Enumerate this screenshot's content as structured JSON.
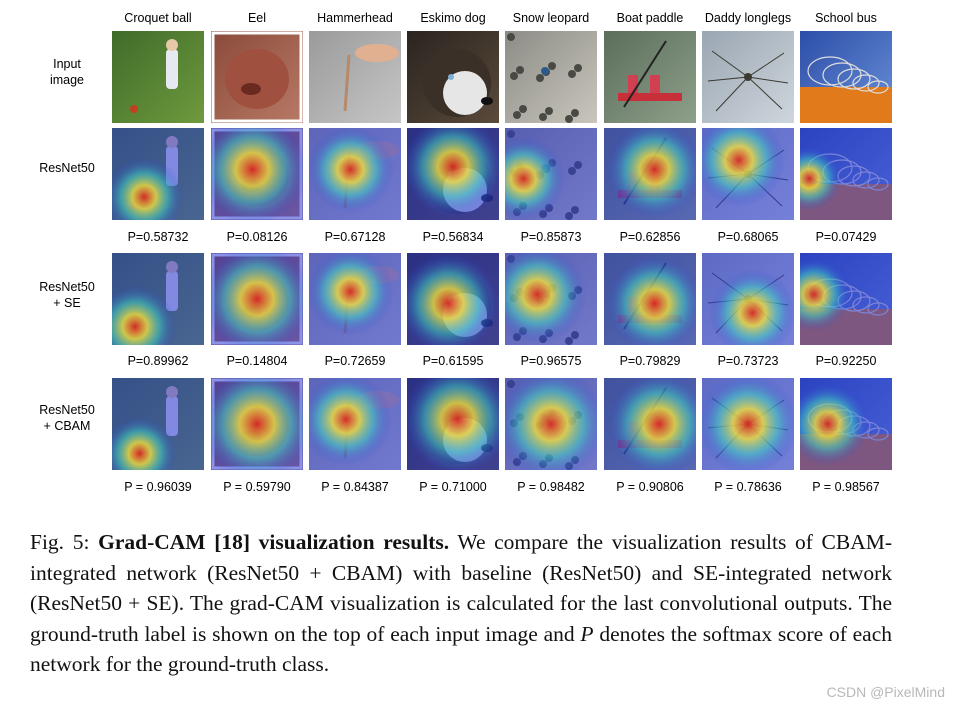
{
  "columns": [
    "Croquet ball",
    "Eel",
    "Hammerhead",
    "Eskimo dog",
    "Snow leopard",
    "Boat paddle",
    "Daddy longlegs",
    "School bus"
  ],
  "rows": [
    {
      "label_lines": [
        "Input",
        "image"
      ],
      "kind": "input",
      "p_values": []
    },
    {
      "label_lines": [
        "ResNet50"
      ],
      "kind": "cam",
      "p_values": [
        "P=0.58732",
        "P=0.08126",
        "P=0.67128",
        "P=0.56834",
        "P=0.85873",
        "P=0.62856",
        "P=0.68065",
        "P=0.07429"
      ]
    },
    {
      "label_lines": [
        "ResNet50",
        "+ SE"
      ],
      "kind": "cam",
      "p_values": [
        "P=0.89962",
        "P=0.14804",
        "P=0.72659",
        "P=0.61595",
        "P=0.96575",
        "P=0.79829",
        "P=0.73723",
        "P=0.92250"
      ]
    },
    {
      "label_lines": [
        "ResNet50",
        "+ CBAM"
      ],
      "kind": "cam",
      "p_values": [
        "P = 0.96039",
        "P = 0.59790",
        "P = 0.84387",
        "P = 0.71000",
        "P = 0.98482",
        "P = 0.90806",
        "P = 0.78636",
        "P = 0.98567"
      ]
    }
  ],
  "caption": {
    "prefix": "Fig. 5:",
    "bold": "Grad-CAM [18] visualization results.",
    "text1": "We compare the visualization results of CBAM-integrated network (ResNet50 + CBAM) with baseline (ResNet50) and SE-integrated network (ResNet50 + SE). The grad-CAM visualization is calculated for the last convolutional outputs. The ground-truth label is shown on the top of each input image and",
    "var": "P",
    "text2": "denotes the softmax score of each network for the ground-truth class."
  },
  "watermark": "CSDN @PixelMind",
  "colors": {
    "heat_low": "#2c3bd6",
    "heat_mid": "#3fd0c0",
    "heat_warm": "#f2e13a",
    "heat_high": "#e0261a"
  }
}
